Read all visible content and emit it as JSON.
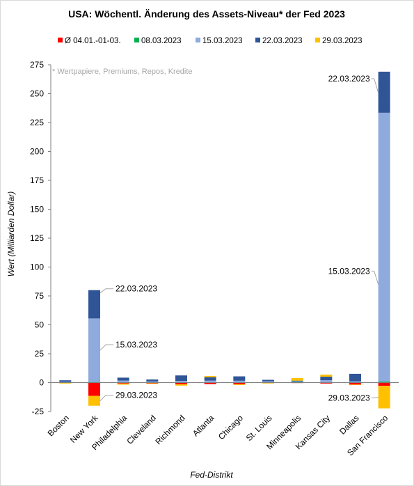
{
  "chart_data": {
    "type": "bar",
    "stacked": true,
    "title": "USA: Wöchentl. Änderung des Assets-Niveau*  der Fed 2023",
    "note": "* Wertpapiere, Premiums, Repos, Kredite",
    "xlabel": "Fed-Distrikt",
    "ylabel": "Wert (Milliarden Dollar)",
    "ylim": [
      -25,
      275
    ],
    "yticks": [
      -25,
      0,
      25,
      50,
      75,
      100,
      125,
      150,
      175,
      200,
      225,
      250,
      275
    ],
    "grid": false,
    "legend_position": "top",
    "categories": [
      "Boston",
      "New York",
      "Philadelphia",
      "Cleveland",
      "Richmond",
      "Atlanta",
      "Chicago",
      "St. Louis",
      "Minneapolis",
      "Kansas City",
      "Dallas",
      "San Francisco"
    ],
    "series": [
      {
        "name": "Ø 04.01.-01-03.",
        "color": "#ff0000",
        "values": [
          -0.3,
          -11.5,
          -0.8,
          -0.6,
          -1.4,
          -1.3,
          -1.3,
          -0.4,
          -0.4,
          -0.8,
          -1.7,
          -2.8
        ]
      },
      {
        "name": "08.03.2023",
        "color": "#00b050",
        "values": [
          0.2,
          0.5,
          0.3,
          0.2,
          0.4,
          0.3,
          0.3,
          0.3,
          0.6,
          0.3,
          0.3,
          1.0
        ]
      },
      {
        "name": "15.03.2023",
        "color": "#8faadc",
        "values": [
          0.5,
          55.0,
          1.5,
          0.8,
          1.0,
          1.4,
          1.3,
          0.8,
          0.6,
          1.8,
          0.8,
          232.5
        ]
      },
      {
        "name": "22.03.2023",
        "color": "#2f5597",
        "values": [
          1.3,
          24.5,
          2.5,
          1.7,
          4.8,
          3.0,
          3.8,
          1.3,
          0.5,
          3.0,
          6.5,
          35.5
        ]
      },
      {
        "name": "29.03.2023",
        "color": "#ffc000",
        "values": [
          -0.5,
          -8.5,
          -1.0,
          -0.5,
          -1.2,
          1.0,
          -0.8,
          -0.4,
          2.2,
          1.8,
          -0.4,
          -19.5
        ]
      }
    ],
    "annotations": [
      {
        "category": "New York",
        "series": "22.03.2023",
        "text": "22.03.2023"
      },
      {
        "category": "New York",
        "series": "15.03.2023",
        "text": "15.03.2023"
      },
      {
        "category": "New York",
        "series": "29.03.2023",
        "text": "29.03.2023"
      },
      {
        "category": "San Francisco",
        "series": "22.03.2023",
        "text": "22.03.2023"
      },
      {
        "category": "San Francisco",
        "series": "15.03.2023",
        "text": "15.03.2023"
      },
      {
        "category": "San Francisco",
        "series": "29.03.2023",
        "text": "29.03.2023"
      }
    ]
  }
}
